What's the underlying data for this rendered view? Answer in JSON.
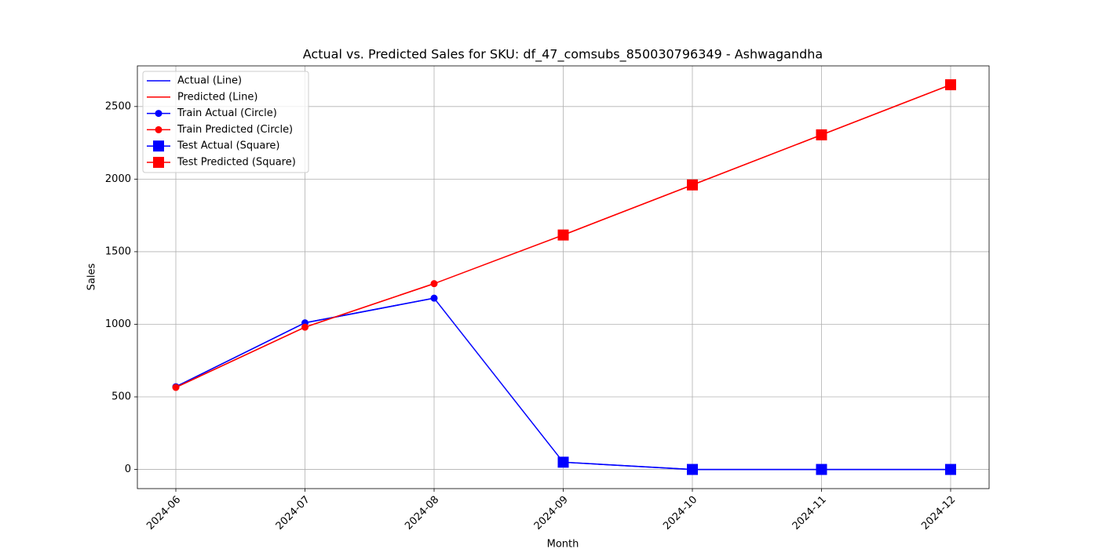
{
  "chart_data": {
    "type": "line",
    "title": "Actual vs. Predicted Sales for SKU: df_47_comsubs_850030796349 - Ashwagandha",
    "x_label": "Month",
    "y_label": "Sales",
    "categories": [
      "2024-06",
      "2024-07",
      "2024-08",
      "2024-09",
      "2024-10",
      "2024-11",
      "2024-12"
    ],
    "series": [
      {
        "name": "Actual (Line)",
        "color": "#0000ff",
        "marker": "none",
        "values": [
          570,
          1010,
          1180,
          50,
          0,
          0,
          0
        ]
      },
      {
        "name": "Predicted (Line)",
        "color": "#ff0000",
        "marker": "none",
        "values": [
          565,
          980,
          1280,
          1615,
          1960,
          2305,
          2650
        ]
      },
      {
        "name": "Train Actual (Circle)",
        "color": "#0000ff",
        "marker": "circle",
        "values": [
          570,
          1010,
          1180,
          null,
          null,
          null,
          null
        ]
      },
      {
        "name": "Train Predicted (Circle)",
        "color": "#ff0000",
        "marker": "circle",
        "values": [
          565,
          980,
          1280,
          null,
          null,
          null,
          null
        ]
      },
      {
        "name": "Test Actual (Square)",
        "color": "#0000ff",
        "marker": "square",
        "values": [
          null,
          null,
          null,
          50,
          0,
          0,
          0
        ]
      },
      {
        "name": "Test Predicted (Square)",
        "color": "#ff0000",
        "marker": "square",
        "values": [
          null,
          null,
          null,
          1615,
          1960,
          2305,
          2650
        ]
      }
    ],
    "ylim": [
      -132,
      2780
    ],
    "yticks": [
      0,
      500,
      1000,
      1500,
      2000,
      2500
    ],
    "grid": true,
    "legend": "upper left"
  }
}
